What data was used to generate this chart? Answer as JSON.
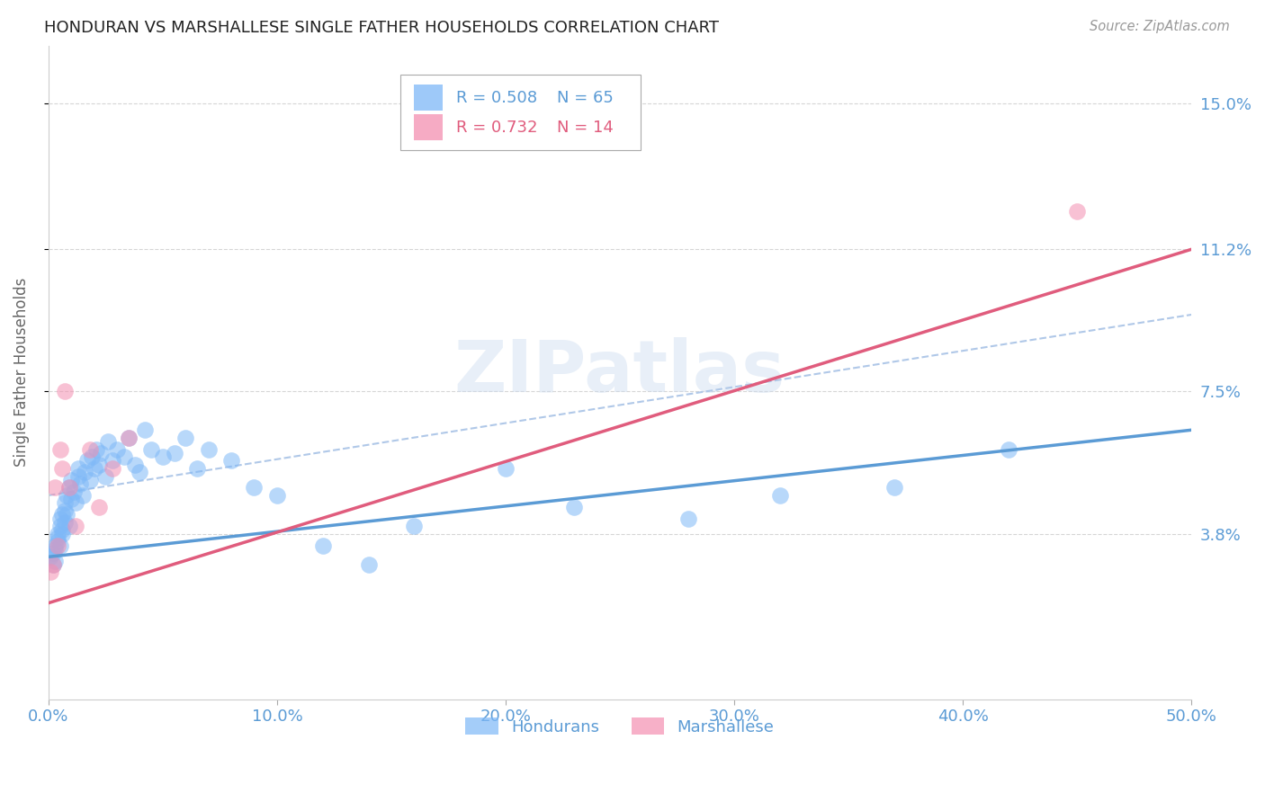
{
  "title": "HONDURAN VS MARSHALLESE SINGLE FATHER HOUSEHOLDS CORRELATION CHART",
  "source": "Source: ZipAtlas.com",
  "ylabel": "Single Father Households",
  "xlim": [
    0.0,
    0.5
  ],
  "ylim": [
    -0.005,
    0.165
  ],
  "xticks": [
    0.0,
    0.1,
    0.2,
    0.3,
    0.4,
    0.5
  ],
  "xticklabels": [
    "0.0%",
    "10.0%",
    "20.0%",
    "30.0%",
    "40.0%",
    "50.0%"
  ],
  "ytick_values": [
    0.038,
    0.075,
    0.112,
    0.15
  ],
  "ytick_labels": [
    "3.8%",
    "7.5%",
    "11.2%",
    "15.0%"
  ],
  "grid_color": "#cccccc",
  "background_color": "#ffffff",
  "watermark": "ZIPatlas",
  "color_hondurans": "#7eb8f7",
  "color_marshallese": "#f48fb1",
  "color_line_hondurans": "#5b9bd5",
  "color_line_marshallese": "#e05c7d",
  "color_dashed": "#b0c8e8",
  "color_axis_labels": "#5b9bd5",
  "hondurans_x": [
    0.001,
    0.002,
    0.002,
    0.003,
    0.003,
    0.003,
    0.004,
    0.004,
    0.004,
    0.005,
    0.005,
    0.005,
    0.006,
    0.006,
    0.006,
    0.007,
    0.007,
    0.007,
    0.008,
    0.008,
    0.009,
    0.009,
    0.01,
    0.01,
    0.011,
    0.012,
    0.013,
    0.013,
    0.014,
    0.015,
    0.016,
    0.017,
    0.018,
    0.019,
    0.02,
    0.021,
    0.022,
    0.023,
    0.025,
    0.026,
    0.028,
    0.03,
    0.033,
    0.035,
    0.038,
    0.04,
    0.042,
    0.045,
    0.05,
    0.055,
    0.06,
    0.065,
    0.07,
    0.08,
    0.09,
    0.1,
    0.12,
    0.14,
    0.16,
    0.2,
    0.23,
    0.28,
    0.32,
    0.37,
    0.42
  ],
  "hondurans_y": [
    0.032,
    0.033,
    0.03,
    0.034,
    0.031,
    0.035,
    0.037,
    0.036,
    0.038,
    0.035,
    0.04,
    0.042,
    0.039,
    0.043,
    0.038,
    0.041,
    0.044,
    0.046,
    0.043,
    0.048,
    0.04,
    0.05,
    0.047,
    0.052,
    0.049,
    0.046,
    0.053,
    0.055,
    0.051,
    0.048,
    0.054,
    0.057,
    0.052,
    0.058,
    0.055,
    0.06,
    0.056,
    0.059,
    0.053,
    0.062,
    0.057,
    0.06,
    0.058,
    0.063,
    0.056,
    0.054,
    0.065,
    0.06,
    0.058,
    0.059,
    0.063,
    0.055,
    0.06,
    0.057,
    0.05,
    0.048,
    0.035,
    0.03,
    0.04,
    0.055,
    0.045,
    0.042,
    0.048,
    0.05,
    0.06
  ],
  "marshallese_x": [
    0.001,
    0.002,
    0.003,
    0.004,
    0.005,
    0.006,
    0.007,
    0.009,
    0.012,
    0.018,
    0.022,
    0.028,
    0.035,
    0.45
  ],
  "marshallese_y": [
    0.028,
    0.03,
    0.05,
    0.035,
    0.06,
    0.055,
    0.075,
    0.05,
    0.04,
    0.06,
    0.045,
    0.055,
    0.063,
    0.122
  ],
  "hond_line_x0": 0.0,
  "hond_line_y0": 0.032,
  "hond_line_x1": 0.5,
  "hond_line_y1": 0.065,
  "marsh_line_x0": 0.0,
  "marsh_line_y0": 0.02,
  "marsh_line_x1": 0.5,
  "marsh_line_y1": 0.112,
  "dash_line_x0": 0.0,
  "dash_line_y0": 0.048,
  "dash_line_x1": 0.5,
  "dash_line_y1": 0.095
}
